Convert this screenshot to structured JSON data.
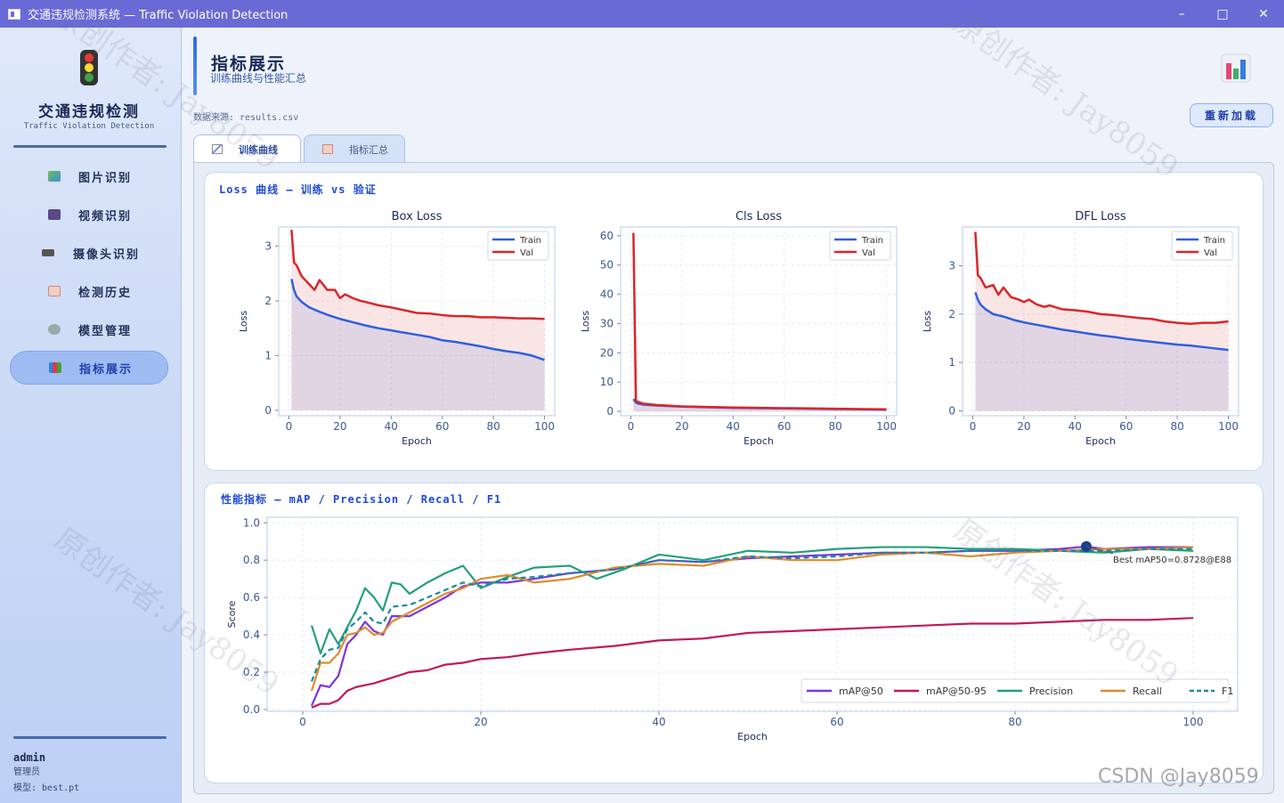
{
  "window": {
    "title": "交通违规检测系统 — Traffic Violation Detection"
  },
  "sidebar": {
    "brand_title": "交通违规检测",
    "brand_sub": "Traffic Violation Detection",
    "items": [
      {
        "label": "图片识别",
        "icon": "image-icon"
      },
      {
        "label": "视频识别",
        "icon": "video-icon"
      },
      {
        "label": "摄像头识别",
        "icon": "camera-icon"
      },
      {
        "label": "检测历史",
        "icon": "history-icon"
      },
      {
        "label": "模型管理",
        "icon": "gear-icon"
      },
      {
        "label": "指标展示",
        "icon": "bar-chart-icon"
      }
    ],
    "active_index": 5,
    "user": {
      "name": "admin",
      "role": "管理员",
      "model": "模型: best.pt"
    }
  },
  "header": {
    "title": "指标展示",
    "subtitle": "训练曲线与性能汇总",
    "data_source": "数据来源: results.csv",
    "reload_label": "重新加载"
  },
  "tabs": [
    {
      "label": "训练曲线",
      "active": true
    },
    {
      "label": "指标汇总",
      "active": false
    }
  ],
  "loss_section": {
    "title": "Loss 曲线 — 训练 vs 验证"
  },
  "metrics_section": {
    "title": "性能指标 — mAP / Precision / Recall / F1"
  },
  "watermark": {
    "text": "原创作者: Jay8059",
    "csdn": "CSDN @Jay8059"
  },
  "colors": {
    "train": "#2f5fde",
    "val": "#d9262a",
    "map50": "#7b34e0",
    "map5095": "#c2185b",
    "precision": "#22a07a",
    "recall": "#e08a2a",
    "f1": "#1a8a9a"
  },
  "chart_data": [
    {
      "type": "line",
      "title": "Box Loss",
      "xlabel": "Epoch",
      "ylabel": "Loss",
      "xlim": [
        -4,
        104
      ],
      "ylim": [
        -0.1,
        3.35
      ],
      "xticks": [
        0,
        20,
        40,
        60,
        80,
        100
      ],
      "yticks": [
        0,
        1,
        2,
        3
      ],
      "legend": "top-right",
      "series": [
        {
          "name": "Train",
          "x": [
            1,
            2,
            3,
            5,
            8,
            12,
            16,
            20,
            25,
            30,
            35,
            40,
            45,
            50,
            55,
            60,
            65,
            70,
            75,
            80,
            85,
            90,
            95,
            100
          ],
          "values": [
            2.4,
            2.2,
            2.08,
            1.98,
            1.88,
            1.8,
            1.73,
            1.67,
            1.61,
            1.55,
            1.5,
            1.46,
            1.42,
            1.38,
            1.34,
            1.28,
            1.25,
            1.21,
            1.17,
            1.12,
            1.08,
            1.05,
            1.0,
            0.92
          ]
        },
        {
          "name": "Val",
          "x": [
            1,
            2,
            3,
            5,
            8,
            10,
            12,
            15,
            18,
            20,
            22,
            25,
            28,
            30,
            35,
            40,
            45,
            50,
            55,
            60,
            65,
            70,
            75,
            80,
            85,
            90,
            95,
            100
          ],
          "values": [
            3.3,
            2.7,
            2.65,
            2.45,
            2.3,
            2.2,
            2.38,
            2.2,
            2.2,
            2.05,
            2.12,
            2.05,
            2.0,
            1.98,
            1.92,
            1.88,
            1.83,
            1.78,
            1.77,
            1.74,
            1.72,
            1.72,
            1.7,
            1.7,
            1.69,
            1.68,
            1.68,
            1.67
          ]
        }
      ]
    },
    {
      "type": "line",
      "title": "Cls Loss",
      "xlabel": "Epoch",
      "ylabel": "Loss",
      "xlim": [
        -4,
        104
      ],
      "ylim": [
        -1.5,
        63
      ],
      "xticks": [
        0,
        20,
        40,
        60,
        80,
        100
      ],
      "yticks": [
        0,
        10,
        20,
        30,
        40,
        50,
        60
      ],
      "legend": "top-right",
      "series": [
        {
          "name": "Train",
          "x": [
            1,
            2,
            3,
            5,
            10,
            20,
            30,
            40,
            50,
            60,
            70,
            80,
            90,
            100
          ],
          "values": [
            4.2,
            3.0,
            2.6,
            2.3,
            2.0,
            1.6,
            1.4,
            1.2,
            1.1,
            1.0,
            0.9,
            0.8,
            0.7,
            0.6
          ]
        },
        {
          "name": "Val",
          "x": [
            1,
            2,
            3,
            5,
            10,
            20,
            30,
            40,
            50,
            60,
            70,
            80,
            90,
            100
          ],
          "values": [
            61,
            3.5,
            3.2,
            2.6,
            2.2,
            1.7,
            1.5,
            1.3,
            1.2,
            1.1,
            1.0,
            0.9,
            0.8,
            0.7
          ]
        }
      ]
    },
    {
      "type": "line",
      "title": "DFL Loss",
      "xlabel": "Epoch",
      "ylabel": "Loss",
      "xlim": [
        -4,
        104
      ],
      "ylim": [
        -0.1,
        3.8
      ],
      "xticks": [
        0,
        20,
        40,
        60,
        80,
        100
      ],
      "yticks": [
        0,
        1,
        2,
        3
      ],
      "legend": "top-right",
      "series": [
        {
          "name": "Train",
          "x": [
            1,
            2,
            3,
            5,
            8,
            12,
            16,
            20,
            25,
            30,
            35,
            40,
            45,
            50,
            55,
            60,
            65,
            70,
            75,
            80,
            85,
            90,
            95,
            100
          ],
          "values": [
            2.45,
            2.3,
            2.2,
            2.1,
            2.0,
            1.95,
            1.88,
            1.83,
            1.78,
            1.73,
            1.68,
            1.64,
            1.6,
            1.56,
            1.53,
            1.49,
            1.46,
            1.43,
            1.4,
            1.37,
            1.35,
            1.32,
            1.29,
            1.26
          ]
        },
        {
          "name": "Val",
          "x": [
            1,
            2,
            3,
            5,
            8,
            10,
            12,
            15,
            18,
            20,
            22,
            25,
            28,
            30,
            35,
            40,
            45,
            50,
            55,
            60,
            65,
            70,
            75,
            80,
            85,
            90,
            95,
            100
          ],
          "values": [
            3.7,
            2.8,
            2.75,
            2.55,
            2.6,
            2.4,
            2.55,
            2.35,
            2.3,
            2.25,
            2.3,
            2.2,
            2.15,
            2.18,
            2.1,
            2.08,
            2.05,
            2.0,
            1.98,
            1.95,
            1.92,
            1.9,
            1.85,
            1.82,
            1.8,
            1.82,
            1.82,
            1.85
          ]
        }
      ]
    },
    {
      "type": "line",
      "xlabel": "Epoch",
      "ylabel": "Score",
      "xlim": [
        -4,
        105
      ],
      "ylim": [
        -0.01,
        1.03
      ],
      "xticks": [
        0,
        20,
        40,
        60,
        80,
        100
      ],
      "yticks": [
        0.0,
        0.2,
        0.4,
        0.6,
        0.8,
        1.0
      ],
      "legend": "bottom-right",
      "annotation": {
        "text": "Best mAP50=0.8728@E88",
        "x": 88,
        "y": 0.873
      },
      "series": [
        {
          "name": "mAP@50",
          "x": [
            1,
            2,
            3,
            4,
            5,
            6,
            7,
            8,
            9,
            10,
            12,
            14,
            16,
            18,
            20,
            23,
            26,
            30,
            35,
            40,
            45,
            50,
            55,
            60,
            65,
            70,
            75,
            80,
            85,
            88,
            90,
            95,
            100
          ],
          "values": [
            0.02,
            0.13,
            0.12,
            0.18,
            0.35,
            0.4,
            0.47,
            0.42,
            0.4,
            0.5,
            0.5,
            0.55,
            0.6,
            0.66,
            0.68,
            0.68,
            0.7,
            0.73,
            0.75,
            0.8,
            0.79,
            0.81,
            0.82,
            0.83,
            0.84,
            0.84,
            0.85,
            0.85,
            0.86,
            0.873,
            0.86,
            0.87,
            0.87
          ]
        },
        {
          "name": "mAP@50-95",
          "x": [
            1,
            2,
            3,
            4,
            5,
            6,
            8,
            10,
            12,
            14,
            16,
            18,
            20,
            23,
            26,
            30,
            35,
            40,
            45,
            50,
            55,
            60,
            65,
            70,
            75,
            80,
            85,
            90,
            95,
            100
          ],
          "values": [
            0.01,
            0.03,
            0.03,
            0.05,
            0.1,
            0.12,
            0.14,
            0.17,
            0.2,
            0.21,
            0.24,
            0.25,
            0.27,
            0.28,
            0.3,
            0.32,
            0.34,
            0.37,
            0.38,
            0.41,
            0.42,
            0.43,
            0.44,
            0.45,
            0.46,
            0.46,
            0.47,
            0.48,
            0.48,
            0.49
          ]
        },
        {
          "name": "Precision",
          "x": [
            1,
            2,
            3,
            4,
            5,
            6,
            7,
            8,
            9,
            10,
            11,
            12,
            14,
            16,
            18,
            20,
            23,
            26,
            30,
            33,
            36,
            40,
            45,
            50,
            55,
            60,
            65,
            70,
            75,
            80,
            85,
            90,
            95,
            100
          ],
          "values": [
            0.45,
            0.3,
            0.43,
            0.35,
            0.44,
            0.53,
            0.65,
            0.6,
            0.53,
            0.68,
            0.67,
            0.62,
            0.68,
            0.73,
            0.77,
            0.65,
            0.71,
            0.76,
            0.77,
            0.7,
            0.75,
            0.83,
            0.8,
            0.85,
            0.84,
            0.86,
            0.87,
            0.87,
            0.86,
            0.86,
            0.85,
            0.84,
            0.86,
            0.85
          ]
        },
        {
          "name": "Recall",
          "x": [
            1,
            2,
            3,
            4,
            5,
            6,
            7,
            8,
            9,
            10,
            12,
            14,
            16,
            18,
            20,
            23,
            26,
            30,
            35,
            40,
            45,
            50,
            55,
            60,
            65,
            70,
            75,
            80,
            85,
            90,
            95,
            100
          ],
          "values": [
            0.1,
            0.25,
            0.25,
            0.3,
            0.4,
            0.41,
            0.44,
            0.4,
            0.41,
            0.47,
            0.52,
            0.57,
            0.62,
            0.65,
            0.7,
            0.72,
            0.68,
            0.7,
            0.76,
            0.78,
            0.77,
            0.82,
            0.8,
            0.8,
            0.83,
            0.84,
            0.82,
            0.84,
            0.85,
            0.86,
            0.86,
            0.87
          ]
        },
        {
          "name": "F1",
          "x": [
            1,
            2,
            3,
            4,
            5,
            6,
            7,
            8,
            9,
            10,
            12,
            14,
            16,
            18,
            20,
            23,
            26,
            30,
            35,
            40,
            45,
            50,
            55,
            60,
            65,
            70,
            75,
            80,
            85,
            90,
            95,
            100
          ],
          "values": [
            0.15,
            0.27,
            0.32,
            0.33,
            0.43,
            0.47,
            0.52,
            0.47,
            0.46,
            0.55,
            0.56,
            0.6,
            0.64,
            0.68,
            0.66,
            0.7,
            0.71,
            0.73,
            0.75,
            0.8,
            0.79,
            0.82,
            0.81,
            0.82,
            0.84,
            0.84,
            0.85,
            0.85,
            0.85,
            0.85,
            0.86,
            0.86
          ]
        }
      ]
    }
  ]
}
